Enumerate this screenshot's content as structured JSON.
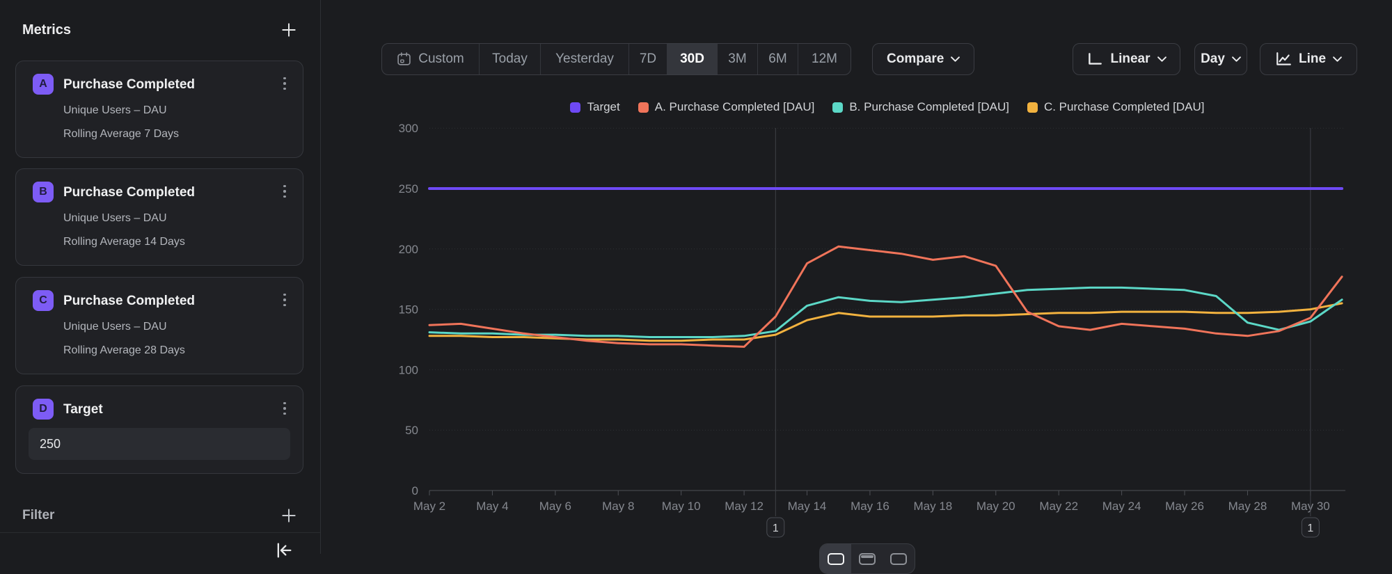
{
  "sidebar": {
    "title": "Metrics",
    "metrics": [
      {
        "badge": "A",
        "title": "Purchase Completed",
        "line1": "Unique Users – DAU",
        "line2": "Rolling Average 7 Days"
      },
      {
        "badge": "B",
        "title": "Purchase Completed",
        "line1": "Unique Users – DAU",
        "line2": "Rolling Average 14 Days"
      },
      {
        "badge": "C",
        "title": "Purchase Completed",
        "line1": "Unique Users – DAU",
        "line2": "Rolling Average 28 Days"
      },
      {
        "badge": "D",
        "title": "Target",
        "value": "250"
      }
    ],
    "filter_label": "Filter"
  },
  "toolbar": {
    "ranges": [
      {
        "label": "Custom",
        "icon": "calendar",
        "active": false
      },
      {
        "label": "Today",
        "active": false
      },
      {
        "label": "Yesterday",
        "active": false
      },
      {
        "label": "7D",
        "active": false
      },
      {
        "label": "30D",
        "active": true
      },
      {
        "label": "3M",
        "active": false
      },
      {
        "label": "6M",
        "active": false
      },
      {
        "label": "12M",
        "active": false
      }
    ],
    "compare_label": "Compare",
    "scale_label": "Linear",
    "interval_label": "Day",
    "chart_type_label": "Line"
  },
  "colors": {
    "target": "#6e49f5",
    "series_a": "#f0745a",
    "series_b": "#5cd8c7",
    "series_c": "#f2b23f",
    "axis_text": "#85888f",
    "gridline": "#2f3135",
    "baseline": "#4e5056",
    "annotation_line": "#3f4147"
  },
  "chart_data": {
    "type": "line",
    "x": [
      "May 2",
      "May 3",
      "May 4",
      "May 5",
      "May 6",
      "May 7",
      "May 8",
      "May 9",
      "May 10",
      "May 11",
      "May 12",
      "May 13",
      "May 14",
      "May 15",
      "May 16",
      "May 17",
      "May 18",
      "May 19",
      "May 20",
      "May 21",
      "May 22",
      "May 23",
      "May 24",
      "May 25",
      "May 26",
      "May 27",
      "May 28",
      "May 29",
      "May 30",
      "May 31"
    ],
    "x_ticks_shown": [
      "May 2",
      "May 4",
      "May 6",
      "May 8",
      "May 10",
      "May 12",
      "May 14",
      "May 16",
      "May 18",
      "May 20",
      "May 22",
      "May 24",
      "May 26",
      "May 28",
      "May 30"
    ],
    "ylim": [
      0,
      300
    ],
    "yticks": [
      0,
      50,
      100,
      150,
      200,
      250,
      300
    ],
    "legend_position": "top",
    "grid": true,
    "series": [
      {
        "name": "Target",
        "color": "#6e49f5",
        "values": [
          250,
          250,
          250,
          250,
          250,
          250,
          250,
          250,
          250,
          250,
          250,
          250,
          250,
          250,
          250,
          250,
          250,
          250,
          250,
          250,
          250,
          250,
          250,
          250,
          250,
          250,
          250,
          250,
          250,
          250
        ]
      },
      {
        "name": "A. Purchase Completed [DAU]",
        "color": "#f0745a",
        "values": [
          137,
          138,
          134,
          130,
          127,
          124,
          122,
          121,
          121,
          120,
          119,
          144,
          188,
          202,
          199,
          196,
          191,
          194,
          186,
          148,
          136,
          133,
          138,
          136,
          134,
          130,
          128,
          132,
          143,
          177
        ]
      },
      {
        "name": "B. Purchase Completed [DAU]",
        "color": "#5cd8c7",
        "values": [
          131,
          130,
          130,
          129,
          129,
          128,
          128,
          127,
          127,
          127,
          128,
          132,
          153,
          160,
          157,
          156,
          158,
          160,
          163,
          166,
          167,
          168,
          168,
          167,
          166,
          161,
          139,
          133,
          140,
          158
        ]
      },
      {
        "name": "C. Purchase Completed [DAU]",
        "color": "#f2b23f",
        "values": [
          128,
          128,
          127,
          127,
          126,
          125,
          125,
          124,
          124,
          125,
          125,
          129,
          141,
          147,
          144,
          144,
          144,
          145,
          145,
          146,
          147,
          147,
          148,
          148,
          148,
          147,
          147,
          148,
          150,
          155
        ]
      }
    ],
    "annotations": [
      {
        "x": "May 13",
        "label": "1"
      },
      {
        "x": "May 30",
        "label": "1"
      }
    ]
  }
}
